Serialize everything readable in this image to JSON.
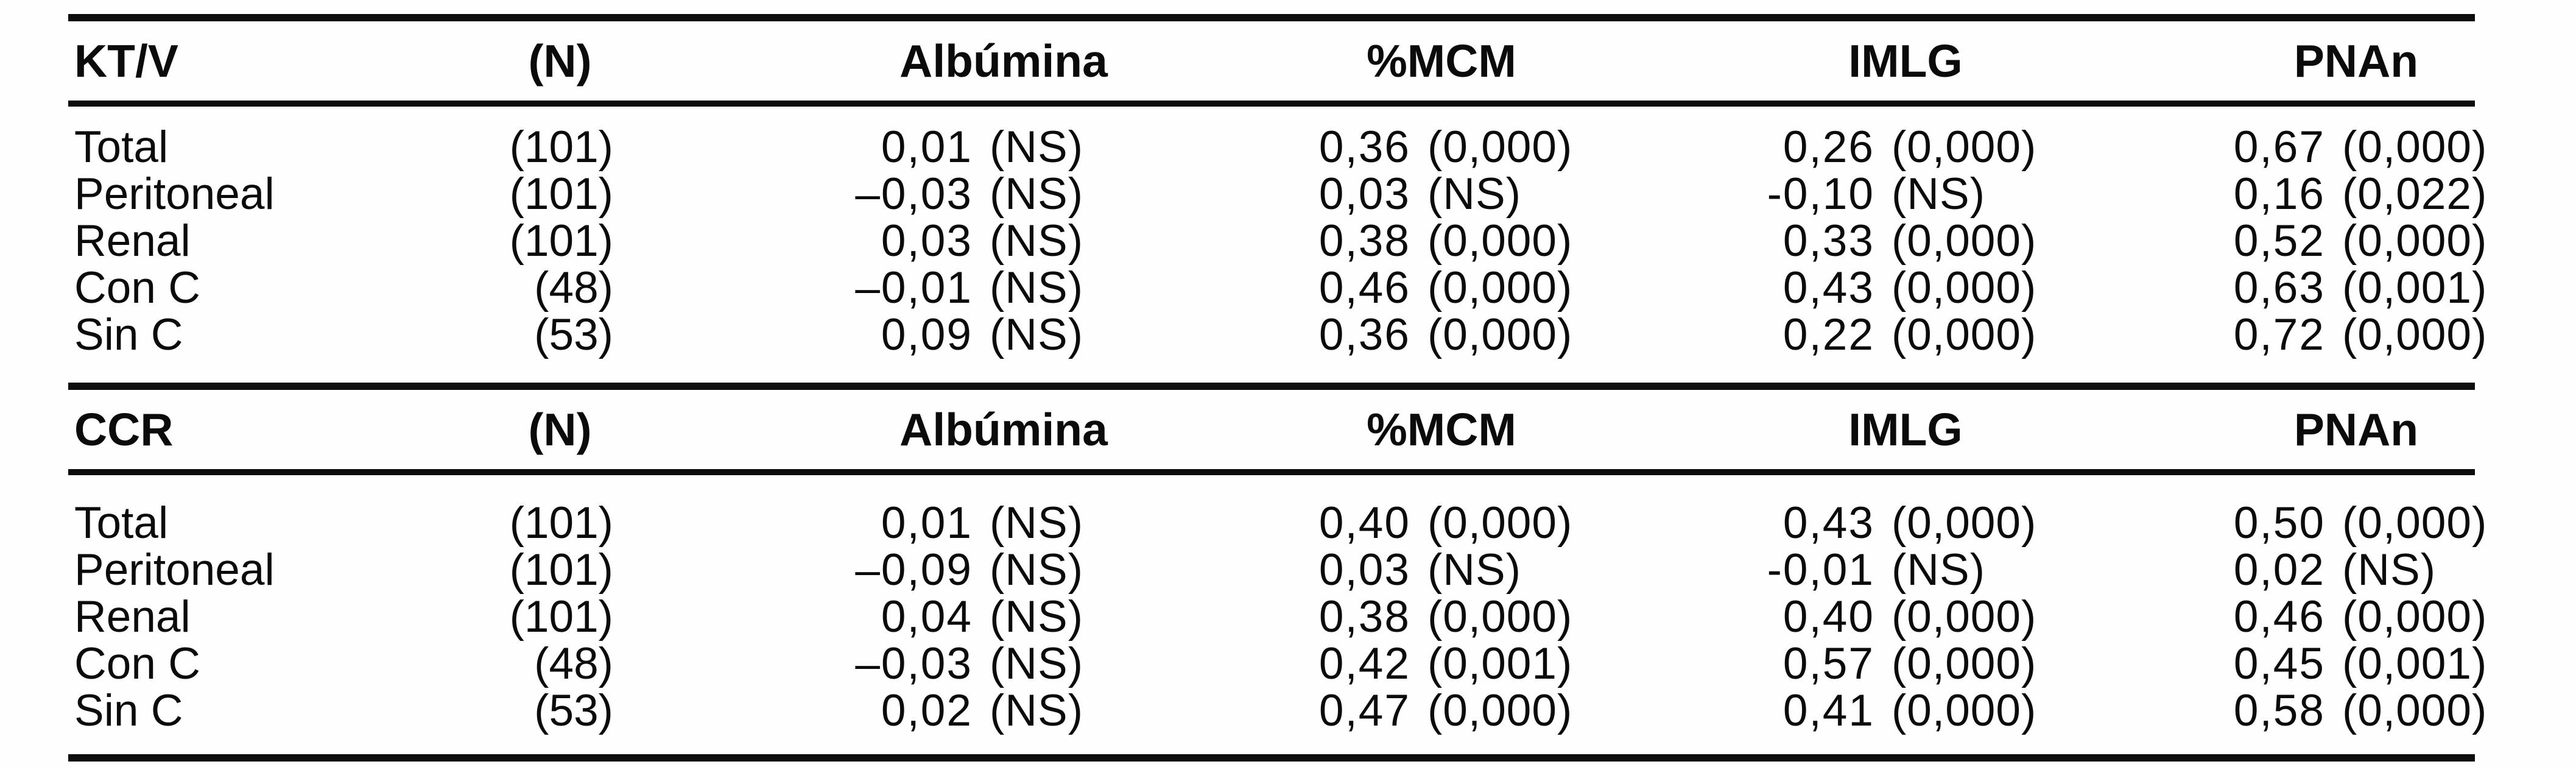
{
  "document": {
    "sections": [
      {
        "title": "KT/V",
        "n_header": "(N)",
        "columns": [
          "Albúmina",
          "%MCM",
          "IMLG",
          "PNAn"
        ],
        "rows": [
          {
            "label": "Total",
            "n": "(101)",
            "cells": [
              {
                "v": "0,01",
                "p": "(NS)"
              },
              {
                "v": "0,36",
                "p": "(0,000)"
              },
              {
                "v": "0,26",
                "p": "(0,000)"
              },
              {
                "v": "0,67",
                "p": "(0,000)"
              }
            ]
          },
          {
            "label": "Peritoneal",
            "n": "(101)",
            "cells": [
              {
                "v": "–0,03",
                "p": "(NS)"
              },
              {
                "v": "0,03",
                "p": "(NS)"
              },
              {
                "v": "-0,10",
                "p": "(NS)"
              },
              {
                "v": "0,16",
                "p": "(0,022)"
              }
            ]
          },
          {
            "label": "Renal",
            "n": "(101)",
            "cells": [
              {
                "v": "0,03",
                "p": "(NS)"
              },
              {
                "v": "0,38",
                "p": "(0,000)"
              },
              {
                "v": "0,33",
                "p": "(0,000)"
              },
              {
                "v": "0,52",
                "p": "(0,000)"
              }
            ]
          },
          {
            "label": "Con C",
            "n": "(48)",
            "cells": [
              {
                "v": "–0,01",
                "p": "(NS)"
              },
              {
                "v": "0,46",
                "p": "(0,000)"
              },
              {
                "v": "0,43",
                "p": "(0,000)"
              },
              {
                "v": "0,63",
                "p": "(0,001)"
              }
            ]
          },
          {
            "label": "Sin C",
            "n": "(53)",
            "cells": [
              {
                "v": "0,09",
                "p": "(NS)"
              },
              {
                "v": "0,36",
                "p": "(0,000)"
              },
              {
                "v": "0,22",
                "p": "(0,000)"
              },
              {
                "v": "0,72",
                "p": "(0,000)"
              }
            ]
          }
        ]
      },
      {
        "title": "CCR",
        "n_header": "(N)",
        "columns": [
          "Albúmina",
          "%MCM",
          "IMLG",
          "PNAn"
        ],
        "rows": [
          {
            "label": "Total",
            "n": "(101)",
            "cells": [
              {
                "v": "0,01",
                "p": "(NS)"
              },
              {
                "v": "0,40",
                "p": "(0,000)"
              },
              {
                "v": "0,43",
                "p": "(0,000)"
              },
              {
                "v": "0,50",
                "p": "(0,000)"
              }
            ]
          },
          {
            "label": "Peritoneal",
            "n": "(101)",
            "cells": [
              {
                "v": "–0,09",
                "p": "(NS)"
              },
              {
                "v": "0,03",
                "p": "(NS)"
              },
              {
                "v": "-0,01",
                "p": "(NS)"
              },
              {
                "v": "0,02",
                "p": "(NS)"
              }
            ]
          },
          {
            "label": "Renal",
            "n": "(101)",
            "cells": [
              {
                "v": "0,04",
                "p": "(NS)"
              },
              {
                "v": "0,38",
                "p": "(0,000)"
              },
              {
                "v": "0,40",
                "p": "(0,000)"
              },
              {
                "v": "0,46",
                "p": "(0,000)"
              }
            ]
          },
          {
            "label": "Con C",
            "n": "(48)",
            "cells": [
              {
                "v": "–0,03",
                "p": "(NS)"
              },
              {
                "v": "0,42",
                "p": "(0,001)"
              },
              {
                "v": "0,57",
                "p": "(0,000)"
              },
              {
                "v": "0,45",
                "p": "(0,001)"
              }
            ]
          },
          {
            "label": "Sin C",
            "n": "(53)",
            "cells": [
              {
                "v": "0,02",
                "p": "(NS)"
              },
              {
                "v": "0,47",
                "p": "(0,000)"
              },
              {
                "v": "0,41",
                "p": "(0,000)"
              },
              {
                "v": "0,58",
                "p": "(0,000)"
              }
            ]
          }
        ]
      }
    ]
  }
}
